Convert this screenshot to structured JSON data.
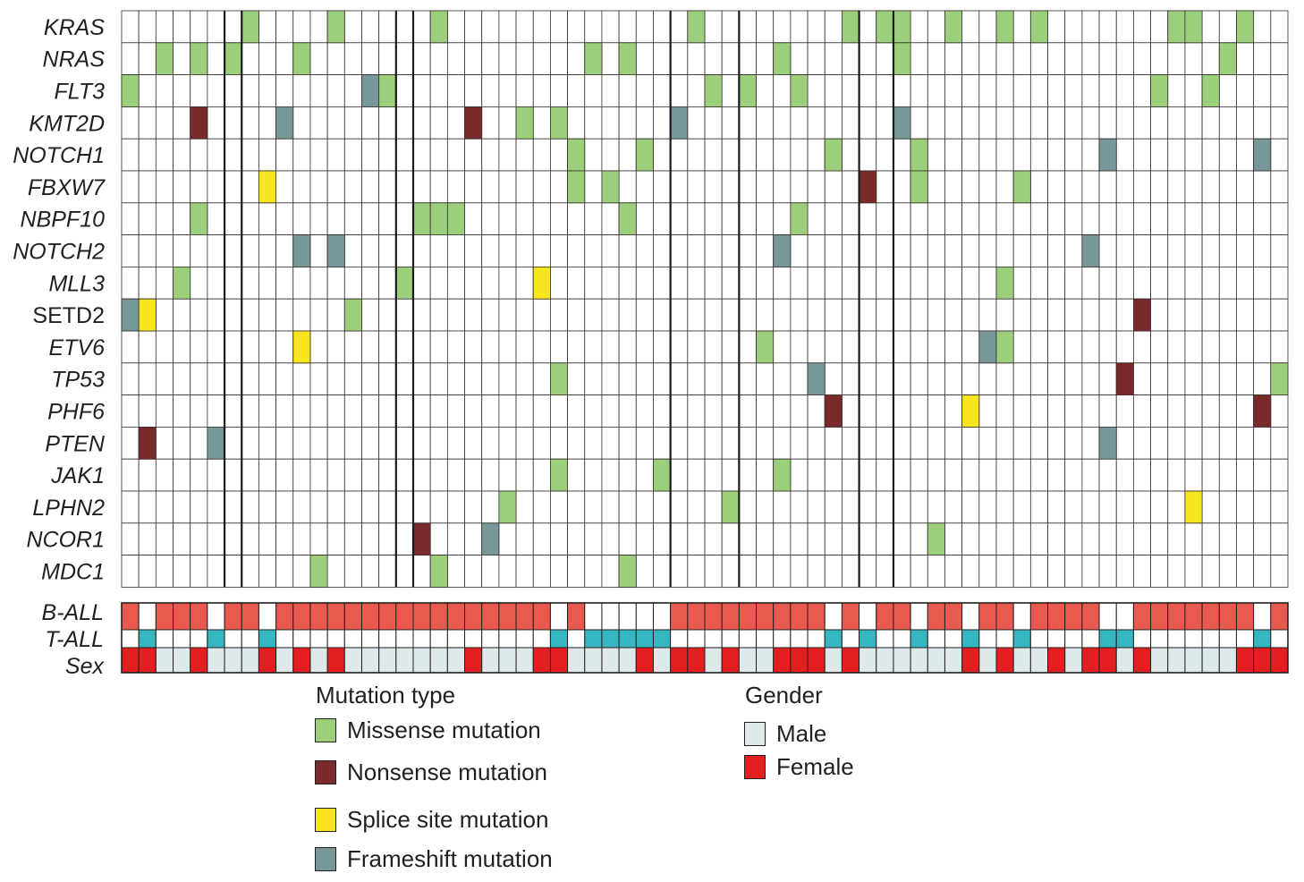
{
  "chart_data": {
    "type": "heatmap",
    "title": "",
    "genes": [
      {
        "name": "KRAS",
        "italic": true
      },
      {
        "name": "NRAS",
        "italic": true
      },
      {
        "name": "FLT3",
        "italic": true
      },
      {
        "name": "KMT2D",
        "italic": true
      },
      {
        "name": "NOTCH1",
        "italic": true
      },
      {
        "name": "FBXW7",
        "italic": true
      },
      {
        "name": "NBPF10",
        "italic": true
      },
      {
        "name": "NOTCH2",
        "italic": true
      },
      {
        "name": "MLL3",
        "italic": true
      },
      {
        "name": "SETD2",
        "italic": false
      },
      {
        "name": "ETV6",
        "italic": true
      },
      {
        "name": "TP53",
        "italic": true
      },
      {
        "name": "PHF6",
        "italic": true
      },
      {
        "name": "PTEN",
        "italic": true
      },
      {
        "name": "JAK1",
        "italic": true
      },
      {
        "name": "LPHN2",
        "italic": true
      },
      {
        "name": "NCOR1",
        "italic": true
      },
      {
        "name": "MDC1",
        "italic": true
      }
    ],
    "n_samples": 68,
    "mutation_codes": {
      "M": "missense",
      "N": "nonsense",
      "S": "splice",
      "F": "frameshift"
    },
    "mutations": [
      [
        "KRAS",
        7,
        "M"
      ],
      [
        "KRAS",
        12,
        "M"
      ],
      [
        "KRAS",
        18,
        "M"
      ],
      [
        "KRAS",
        33,
        "M"
      ],
      [
        "KRAS",
        42,
        "M"
      ],
      [
        "KRAS",
        44,
        "M"
      ],
      [
        "KRAS",
        45,
        "M"
      ],
      [
        "KRAS",
        48,
        "M"
      ],
      [
        "KRAS",
        51,
        "M"
      ],
      [
        "KRAS",
        53,
        "M"
      ],
      [
        "KRAS",
        61,
        "M"
      ],
      [
        "KRAS",
        62,
        "M"
      ],
      [
        "KRAS",
        65,
        "M"
      ],
      [
        "NRAS",
        2,
        "M"
      ],
      [
        "NRAS",
        4,
        "M"
      ],
      [
        "NRAS",
        6,
        "M"
      ],
      [
        "NRAS",
        10,
        "M"
      ],
      [
        "NRAS",
        27,
        "M"
      ],
      [
        "NRAS",
        29,
        "M"
      ],
      [
        "NRAS",
        38,
        "M"
      ],
      [
        "NRAS",
        45,
        "M"
      ],
      [
        "NRAS",
        64,
        "M"
      ],
      [
        "FLT3",
        0,
        "M"
      ],
      [
        "FLT3",
        14,
        "F"
      ],
      [
        "FLT3",
        15,
        "M"
      ],
      [
        "FLT3",
        34,
        "M"
      ],
      [
        "FLT3",
        36,
        "M"
      ],
      [
        "FLT3",
        39,
        "M"
      ],
      [
        "FLT3",
        60,
        "M"
      ],
      [
        "FLT3",
        63,
        "M"
      ],
      [
        "KMT2D",
        4,
        "N"
      ],
      [
        "KMT2D",
        9,
        "F"
      ],
      [
        "KMT2D",
        20,
        "N"
      ],
      [
        "KMT2D",
        23,
        "M"
      ],
      [
        "KMT2D",
        25,
        "M"
      ],
      [
        "KMT2D",
        32,
        "F"
      ],
      [
        "KMT2D",
        45,
        "F"
      ],
      [
        "NOTCH1",
        26,
        "M"
      ],
      [
        "NOTCH1",
        30,
        "M"
      ],
      [
        "NOTCH1",
        41,
        "M"
      ],
      [
        "NOTCH1",
        46,
        "M"
      ],
      [
        "NOTCH1",
        57,
        "F"
      ],
      [
        "NOTCH1",
        66,
        "F"
      ],
      [
        "FBXW7",
        8,
        "S"
      ],
      [
        "FBXW7",
        26,
        "M"
      ],
      [
        "FBXW7",
        28,
        "M"
      ],
      [
        "FBXW7",
        43,
        "N"
      ],
      [
        "FBXW7",
        46,
        "M"
      ],
      [
        "FBXW7",
        52,
        "M"
      ],
      [
        "NBPF10",
        4,
        "M"
      ],
      [
        "NBPF10",
        17,
        "M"
      ],
      [
        "NBPF10",
        18,
        "M"
      ],
      [
        "NBPF10",
        19,
        "M"
      ],
      [
        "NBPF10",
        29,
        "M"
      ],
      [
        "NBPF10",
        39,
        "M"
      ],
      [
        "NOTCH2",
        10,
        "F"
      ],
      [
        "NOTCH2",
        12,
        "F"
      ],
      [
        "NOTCH2",
        38,
        "F"
      ],
      [
        "NOTCH2",
        56,
        "F"
      ],
      [
        "MLL3",
        3,
        "M"
      ],
      [
        "MLL3",
        16,
        "M"
      ],
      [
        "MLL3",
        24,
        "S"
      ],
      [
        "MLL3",
        51,
        "M"
      ],
      [
        "SETD2",
        0,
        "F"
      ],
      [
        "SETD2",
        1,
        "S"
      ],
      [
        "SETD2",
        13,
        "M"
      ],
      [
        "SETD2",
        59,
        "N"
      ],
      [
        "ETV6",
        10,
        "S"
      ],
      [
        "ETV6",
        37,
        "M"
      ],
      [
        "ETV6",
        50,
        "F"
      ],
      [
        "ETV6",
        51,
        "M"
      ],
      [
        "TP53",
        25,
        "M"
      ],
      [
        "TP53",
        40,
        "F"
      ],
      [
        "TP53",
        58,
        "N"
      ],
      [
        "TP53",
        67,
        "M"
      ],
      [
        "PHF6",
        41,
        "N"
      ],
      [
        "PHF6",
        49,
        "S"
      ],
      [
        "PHF6",
        66,
        "N"
      ],
      [
        "PTEN",
        1,
        "N"
      ],
      [
        "PTEN",
        5,
        "F"
      ],
      [
        "PTEN",
        57,
        "F"
      ],
      [
        "JAK1",
        25,
        "M"
      ],
      [
        "JAK1",
        31,
        "M"
      ],
      [
        "JAK1",
        38,
        "M"
      ],
      [
        "LPHN2",
        22,
        "M"
      ],
      [
        "LPHN2",
        35,
        "M"
      ],
      [
        "LPHN2",
        62,
        "S"
      ],
      [
        "NCOR1",
        17,
        "N"
      ],
      [
        "NCOR1",
        21,
        "F"
      ],
      [
        "NCOR1",
        47,
        "M"
      ],
      [
        "MDC1",
        11,
        "M"
      ],
      [
        "MDC1",
        18,
        "M"
      ],
      [
        "MDC1",
        29,
        "M"
      ]
    ],
    "tracks": {
      "b_all_label": "B-ALL",
      "t_all_label": "T-ALL",
      "sex_label": "Sex",
      "lineage": "BTBBBTBBTBBBBBBBBBBBBBBBBTBTTTTTBBBBBBBBBTBTBBTBBTBBTBBBBTTBBBBBBBTB",
      "sex": "FFMMFMMMFMFMFMMMMMMMFMMMFFMMMMFMFFMFMMFFFMFMMMMMMFMFMMFMFFMFMMMMMFFF"
    },
    "group_dividers_after": [
      5,
      6,
      15,
      16,
      31,
      35,
      42,
      44
    ]
  },
  "colors": {
    "missense": "#9ccf7c",
    "nonsense": "#7a2a2b",
    "splice": "#f7e51e",
    "frameshift": "#76989a",
    "b_all": "#e9594f",
    "t_all": "#35b6c0",
    "male": "#dde9ea",
    "female": "#e41f22",
    "grid": "#3a2f2f"
  },
  "legend_mutation": {
    "title": "Mutation type",
    "items": [
      {
        "label": "Missense mutation",
        "key": "missense"
      },
      {
        "label": "Nonsense mutation",
        "key": "nonsense"
      },
      {
        "label": "Splice site mutation",
        "key": "splice"
      },
      {
        "label": "Frameshift mutation",
        "key": "frameshift"
      }
    ]
  },
  "legend_gender": {
    "title": "Gender",
    "items": [
      {
        "label": "Male",
        "key": "male"
      },
      {
        "label": "Female",
        "key": "female"
      }
    ]
  }
}
